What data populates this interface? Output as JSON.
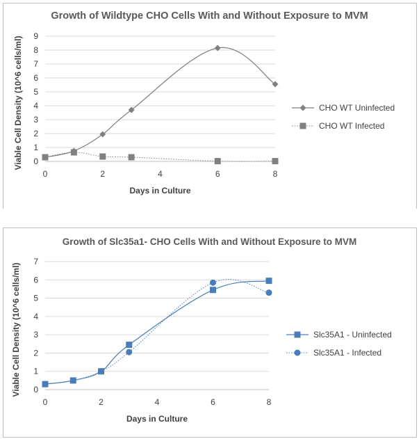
{
  "chart_data": [
    {
      "type": "line",
      "title": "Growth of Wildtype CHO Cells  With and Without Exposure to MVM",
      "xlabel": "Days in Culture",
      "ylabel": "Viable Cell Density (10^6  cells/ml)",
      "xlim": [
        0,
        8
      ],
      "ylim": [
        0,
        9
      ],
      "xticks": [
        0,
        2,
        4,
        6,
        8
      ],
      "yticks": [
        0,
        1,
        2,
        3,
        4,
        5,
        6,
        7,
        8,
        9
      ],
      "grid": true,
      "legend_position": "right",
      "series": [
        {
          "name": "CHO WT Uninfected",
          "marker": "diamond",
          "color": "#808080",
          "line": "solid-smooth",
          "points": [
            [
              0,
              0.3
            ],
            [
              1,
              0.75
            ],
            [
              2,
              1.95
            ],
            [
              3,
              3.7
            ],
            [
              6,
              8.15
            ],
            [
              8,
              5.55
            ]
          ]
        },
        {
          "name": "CHO WT Infected",
          "marker": "square",
          "color": "#808080",
          "line": "dotted",
          "points": [
            [
              0,
              0.3
            ],
            [
              1,
              0.65
            ],
            [
              2,
              0.35
            ],
            [
              3,
              0.3
            ],
            [
              6,
              0.02
            ],
            [
              8,
              0.02
            ]
          ]
        }
      ]
    },
    {
      "type": "line",
      "title": "Growth of Slc35a1- CHO Cells With and Without Exposure to MVM",
      "xlabel": "Days in Culture",
      "ylabel": "Viable Cell Density (10^6  cells/ml)",
      "xlim": [
        0,
        8
      ],
      "ylim": [
        0,
        7
      ],
      "xticks": [
        0,
        2,
        4,
        6,
        8
      ],
      "yticks": [
        0,
        1,
        2,
        3,
        4,
        5,
        6,
        7
      ],
      "grid": true,
      "legend_position": "right",
      "series": [
        {
          "name": "Slc35A1 -  Uninfected",
          "marker": "square",
          "color": "#4a7ebb",
          "line": "solid-smooth",
          "points": [
            [
              0,
              0.3
            ],
            [
              1,
              0.5
            ],
            [
              2,
              1.0
            ],
            [
              3,
              2.45
            ],
            [
              6,
              5.45
            ],
            [
              8,
              5.95
            ]
          ]
        },
        {
          "name": "Slc35A1 -  Infected",
          "marker": "circle",
          "color": "#4a7ebb",
          "line": "dotted",
          "points": [
            [
              0,
              0.3
            ],
            [
              1,
              0.5
            ],
            [
              2,
              1.0
            ],
            [
              3,
              2.05
            ],
            [
              6,
              5.85
            ],
            [
              8,
              5.3
            ]
          ]
        }
      ]
    }
  ]
}
